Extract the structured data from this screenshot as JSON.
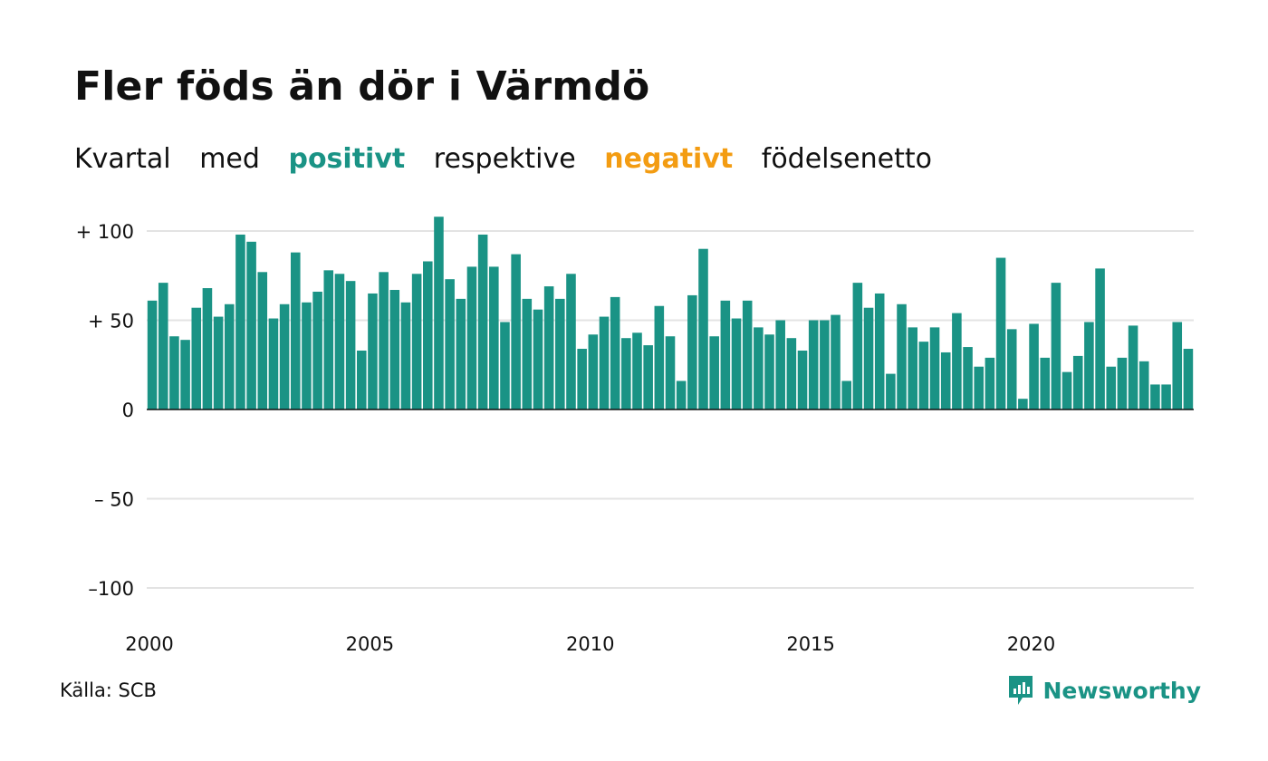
{
  "title": "Fler föds än dör i Värmdö",
  "subtitle": {
    "w1": "Kvartal",
    "w2": "med",
    "positive": "positivt",
    "w3": "respektive",
    "negative": "negativt",
    "w4": "födelsenetto"
  },
  "colors": {
    "positive": "#1a9385",
    "negative": "#f39c12",
    "grid": "#e3e3e3"
  },
  "source": "Källa: SCB",
  "brand": {
    "name": "Newsworthy",
    "icon": "newsworthy-logo-icon"
  },
  "chart_data": {
    "type": "bar",
    "x_start_year": 2000,
    "ylim": [
      -110,
      110
    ],
    "yticks": [
      100,
      50,
      0,
      -50,
      -100
    ],
    "ytick_labels": [
      "+ 100",
      "+  50",
      "0",
      "– 50",
      "–100"
    ],
    "xticks": [
      2000,
      2005,
      2010,
      2015,
      2020
    ],
    "xtick_labels": [
      "2000",
      "2005",
      "2010",
      "2015",
      "2020"
    ],
    "grid": true,
    "values": [
      61,
      71,
      41,
      39,
      57,
      68,
      52,
      59,
      98,
      94,
      77,
      51,
      59,
      88,
      60,
      66,
      78,
      76,
      72,
      33,
      65,
      77,
      67,
      60,
      76,
      83,
      108,
      73,
      62,
      80,
      98,
      80,
      49,
      87,
      62,
      56,
      69,
      62,
      76,
      34,
      42,
      52,
      63,
      40,
      43,
      36,
      58,
      41,
      16,
      64,
      90,
      41,
      61,
      51,
      61,
      46,
      42,
      50,
      40,
      33,
      50,
      50,
      53,
      16,
      71,
      57,
      65,
      20,
      59,
      46,
      38,
      46,
      32,
      54,
      35,
      24,
      29,
      85,
      45,
      6,
      48,
      29,
      71,
      21,
      30,
      49,
      79,
      24,
      29,
      47,
      27,
      14,
      14,
      49,
      34
    ]
  }
}
